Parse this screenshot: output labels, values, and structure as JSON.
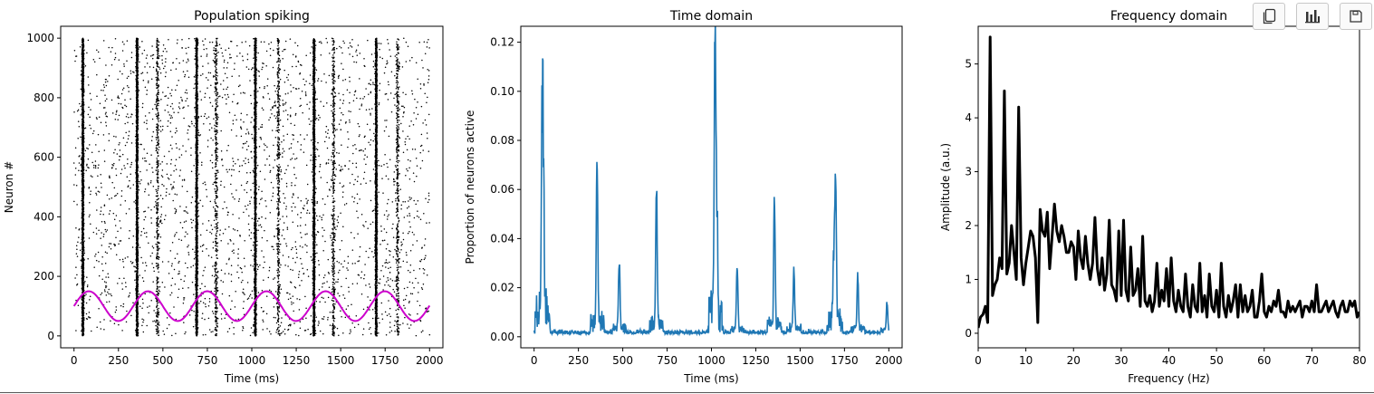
{
  "toolbar": {
    "icons": [
      "copy-icon",
      "chart-icon",
      "save-icon"
    ]
  },
  "chart_data": [
    {
      "type": "scatter",
      "title": "Population spiking",
      "xlabel": "Time (ms)",
      "ylabel": "Neuron #",
      "xlim": [
        -75,
        2075
      ],
      "ylim": [
        -40,
        1040
      ],
      "xticks": [
        "0",
        "250",
        "500",
        "750",
        "1000",
        "1250",
        "1500",
        "1750",
        "2000"
      ],
      "yticks": [
        "0",
        "200",
        "400",
        "600",
        "800",
        "1000"
      ],
      "n_neurons": 1000,
      "burst_times_ms": [
        50,
        355,
        690,
        1020,
        1350,
        1700
      ],
      "minor_burst_times_ms": [
        470,
        800,
        1150,
        1460,
        1820
      ],
      "series": [
        {
          "kind": "raster",
          "color": "#000000"
        },
        {
          "kind": "line",
          "color": "#cc00cc",
          "x_range": [
            0,
            2000
          ],
          "offset": 100,
          "amplitude": 50,
          "period_ms": 333
        }
      ]
    },
    {
      "type": "line",
      "title": "Time domain",
      "xlabel": "Time (ms)",
      "ylabel": "Proportion of neurons active",
      "xlim": [
        -75,
        2075
      ],
      "ylim": [
        -0.0045,
        0.1265
      ],
      "xticks": [
        "0",
        "250",
        "500",
        "750",
        "1000",
        "1250",
        "1500",
        "1750",
        "2000"
      ],
      "yticks": [
        "0.00",
        "0.02",
        "0.04",
        "0.06",
        "0.08",
        "0.10",
        "0.12"
      ],
      "color": "#1f77b4",
      "peaks": [
        {
          "t": 45,
          "v": 0.083
        },
        {
          "t": 52,
          "v": 0.069
        },
        {
          "t": 355,
          "v": 0.068
        },
        {
          "t": 480,
          "v": 0.029
        },
        {
          "t": 690,
          "v": 0.058
        },
        {
          "t": 1020,
          "v": 0.12
        },
        {
          "t": 1030,
          "v": 0.049
        },
        {
          "t": 1145,
          "v": 0.027
        },
        {
          "t": 1355,
          "v": 0.053
        },
        {
          "t": 1465,
          "v": 0.026
        },
        {
          "t": 1700,
          "v": 0.064
        },
        {
          "t": 1690,
          "v": 0.031
        },
        {
          "t": 1825,
          "v": 0.023
        },
        {
          "t": 1990,
          "v": 0.013
        }
      ]
    },
    {
      "type": "line",
      "title": "Frequency domain",
      "xlabel": "Frequency (Hz)",
      "ylabel": "Amplitude (a.u.)",
      "xlim": [
        0,
        80
      ],
      "ylim": [
        -0.27,
        5.7
      ],
      "xticks": [
        "0",
        "10",
        "20",
        "30",
        "40",
        "50",
        "60",
        "70",
        "80"
      ],
      "yticks": [
        "0",
        "1",
        "2",
        "3",
        "4",
        "5"
      ],
      "color": "#000000",
      "x": [
        0,
        0.5,
        1,
        1.5,
        2,
        2.5,
        3,
        3.5,
        4,
        4.5,
        5,
        5.5,
        6,
        6.5,
        7,
        7.5,
        8,
        8.5,
        9,
        9.5,
        10,
        10.5,
        11,
        11.5,
        12,
        12.5,
        13,
        13.5,
        14,
        14.5,
        15,
        15.5,
        16,
        16.5,
        17,
        17.5,
        18,
        18.5,
        19,
        19.5,
        20,
        20.5,
        21,
        21.5,
        22,
        22.5,
        23,
        23.5,
        24,
        24.5,
        25,
        25.5,
        26,
        26.5,
        27,
        27.5,
        28,
        28.5,
        29,
        29.5,
        30,
        30.5,
        31,
        31.5,
        32,
        32.5,
        33,
        33.5,
        34,
        34.5,
        35,
        35.5,
        36,
        36.5,
        37,
        37.5,
        38,
        38.5,
        39,
        39.5,
        40,
        40.5,
        41,
        41.5,
        42,
        42.5,
        43,
        43.5,
        44,
        44.5,
        45,
        45.5,
        46,
        46.5,
        47,
        47.5,
        48,
        48.5,
        49,
        49.5,
        50,
        50.5,
        51,
        51.5,
        52,
        52.5,
        53,
        53.5,
        54,
        54.5,
        55,
        55.5,
        56,
        56.5,
        57,
        57.5,
        58,
        58.5,
        59,
        59.5,
        60,
        60.5,
        61,
        61.5,
        62,
        62.5,
        63,
        63.5,
        64,
        64.5,
        65,
        65.5,
        66,
        66.5,
        67,
        67.5,
        68,
        68.5,
        69,
        69.5,
        70,
        70.5,
        71,
        71.5,
        72,
        72.5,
        73,
        73.5,
        74,
        74.5,
        75,
        75.5,
        76,
        76.5,
        77,
        77.5,
        78,
        78.5,
        79,
        79.5,
        80
      ],
      "y": [
        0.1,
        0.3,
        0.35,
        0.5,
        0.2,
        5.5,
        0.7,
        0.9,
        1.0,
        1.4,
        1.2,
        4.5,
        1.1,
        1.3,
        2.0,
        1.5,
        1.0,
        4.2,
        1.4,
        0.9,
        1.3,
        1.6,
        1.9,
        1.8,
        1.4,
        0.2,
        2.3,
        1.9,
        1.8,
        2.25,
        1.2,
        1.8,
        2.4,
        1.9,
        1.7,
        2.0,
        1.8,
        1.5,
        1.5,
        1.7,
        1.6,
        1.0,
        1.9,
        1.4,
        1.2,
        1.8,
        1.3,
        1.0,
        1.3,
        2.15,
        1.2,
        0.9,
        1.4,
        0.8,
        1.1,
        2.1,
        0.9,
        0.8,
        0.6,
        1.9,
        0.7,
        2.1,
        0.8,
        0.6,
        1.6,
        0.7,
        0.8,
        1.2,
        0.5,
        1.8,
        0.6,
        0.5,
        0.7,
        0.4,
        0.6,
        1.3,
        0.5,
        0.8,
        0.6,
        1.2,
        0.5,
        1.4,
        0.6,
        0.4,
        0.8,
        0.5,
        0.4,
        1.1,
        0.5,
        0.3,
        0.9,
        0.5,
        0.4,
        1.3,
        0.4,
        0.7,
        0.3,
        1.1,
        0.5,
        0.4,
        0.8,
        0.3,
        1.3,
        0.5,
        0.3,
        0.7,
        0.4,
        0.6,
        0.9,
        0.3,
        0.9,
        0.4,
        0.7,
        0.4,
        0.5,
        0.8,
        0.3,
        0.3,
        0.6,
        1.1,
        0.4,
        0.3,
        0.5,
        0.4,
        0.6,
        0.5,
        0.8,
        0.4,
        0.4,
        0.3,
        0.6,
        0.4,
        0.5,
        0.4,
        0.5,
        0.6,
        0.3,
        0.5,
        0.5,
        0.4,
        0.6,
        0.4,
        0.9,
        0.4,
        0.4,
        0.5,
        0.6,
        0.4,
        0.5,
        0.6,
        0.4,
        0.3,
        0.5,
        0.6,
        0.4,
        0.4,
        0.6,
        0.5,
        0.6,
        0.3,
        0.4
      ]
    }
  ]
}
